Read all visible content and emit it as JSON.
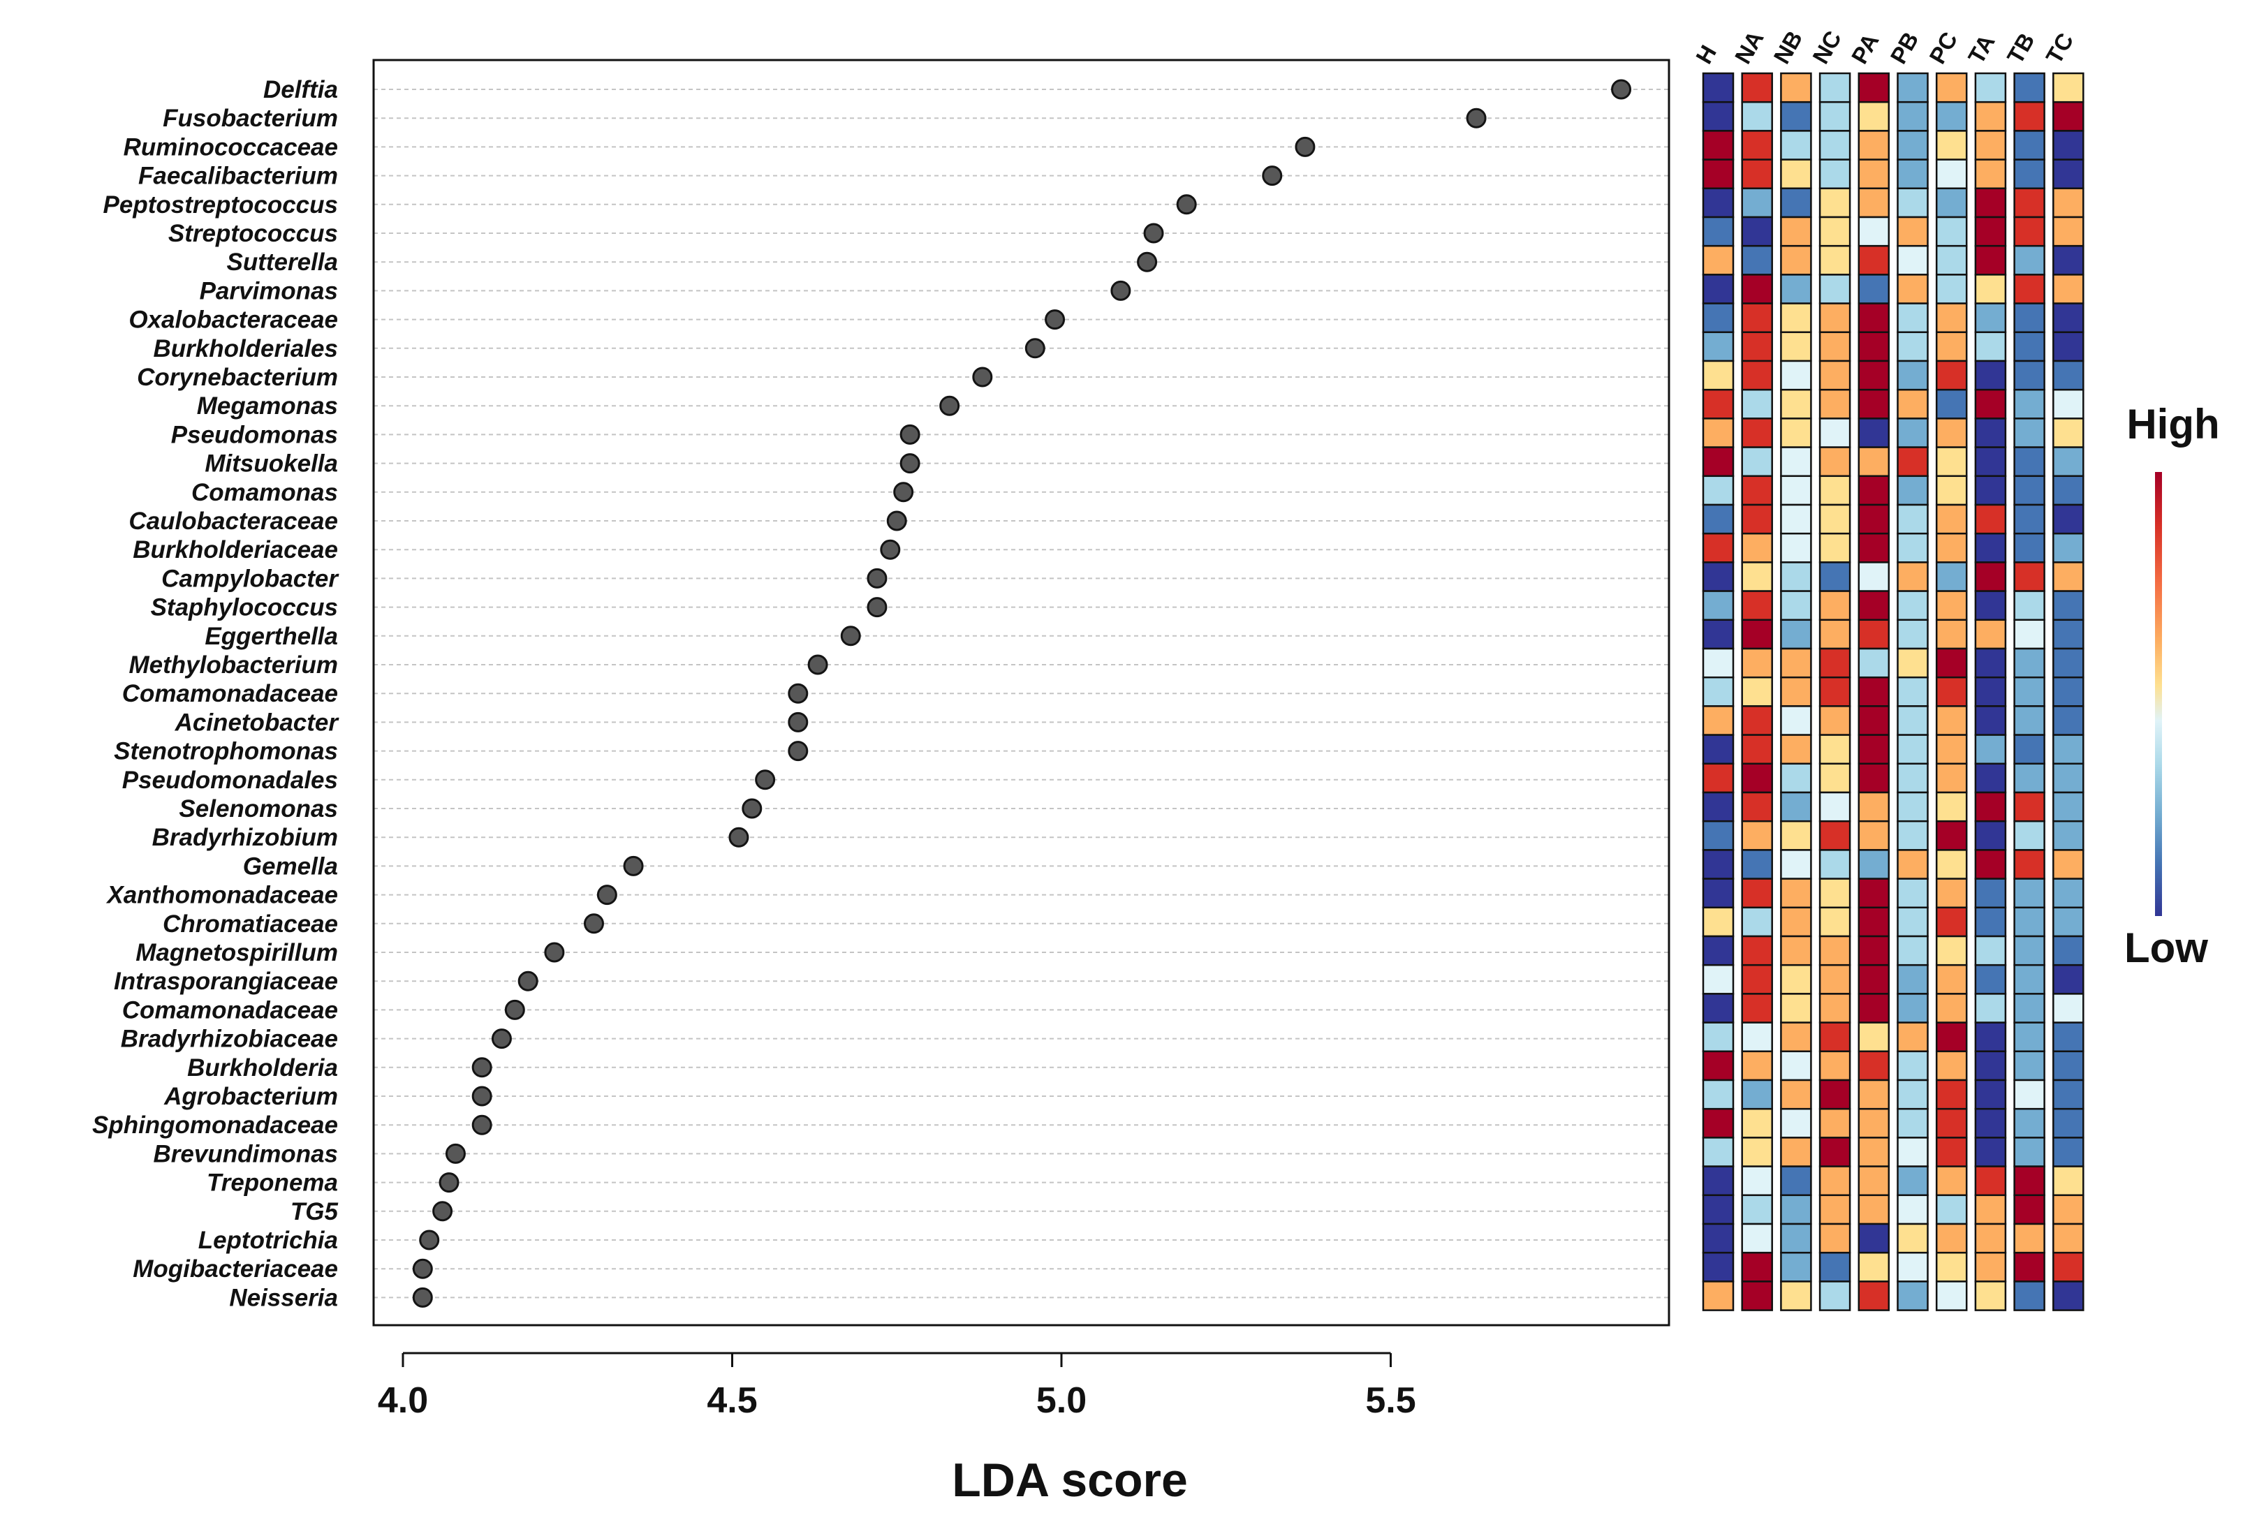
{
  "chart_data": {
    "type": "scatter",
    "title": "",
    "xlabel": "LDA score",
    "ylabel": "",
    "xlim": [
      3.96,
      5.92
    ],
    "xticks": [
      "4.0",
      "4.5",
      "5.0",
      "5.5"
    ],
    "grid": true,
    "categories": [
      "Delftia",
      "Fusobacterium",
      "Ruminococcaceae",
      "Faecalibacterium",
      "Peptostreptococcus",
      "Streptococcus",
      "Sutterella",
      "Parvimonas",
      "Oxalobacteraceae",
      "Burkholderiales",
      "Corynebacterium",
      "Megamonas",
      "Pseudomonas",
      "Mitsuokella",
      "Comamonas",
      "Caulobacteraceae",
      "Burkholderiaceae",
      "Campylobacter",
      "Staphylococcus",
      "Eggerthella",
      "Methylobacterium",
      "Comamonadaceae",
      "Acinetobacter",
      "Stenotrophomonas",
      "Pseudomonadales",
      "Selenomonas",
      "Bradyrhizobium",
      "Gemella",
      "Xanthomonadaceae",
      "Chromatiaceae",
      "Magnetospirillum",
      "Intrasporangiaceae",
      "Comamonadaceae",
      "Bradyrhizobiaceae",
      "Burkholderia",
      "Agrobacterium",
      "Sphingomonadaceae",
      "Brevundimonas",
      "Treponema",
      "TG5",
      "Leptotrichia",
      "Mogibacteriaceae",
      "Neisseria"
    ],
    "values": [
      5.85,
      5.63,
      5.37,
      5.32,
      5.19,
      5.14,
      5.13,
      5.09,
      4.99,
      4.96,
      4.88,
      4.83,
      4.77,
      4.77,
      4.76,
      4.75,
      4.74,
      4.72,
      4.72,
      4.68,
      4.63,
      4.6,
      4.6,
      4.6,
      4.55,
      4.53,
      4.51,
      4.35,
      4.31,
      4.29,
      4.23,
      4.19,
      4.17,
      4.15,
      4.12,
      4.12,
      4.12,
      4.08,
      4.07,
      4.06,
      4.04,
      4.03,
      4.03
    ],
    "heatmap": {
      "columns": [
        "H",
        "NA",
        "NB",
        "NC",
        "PA",
        "PB",
        "PC",
        "TA",
        "TB",
        "TC"
      ],
      "scale": "1 = Low (dark blue) to 9 = High (dark red)",
      "rows": [
        [
          1,
          8,
          7,
          4,
          9,
          3,
          7,
          4,
          2,
          6
        ],
        [
          1,
          4,
          2,
          4,
          6,
          3,
          3,
          7,
          8,
          9
        ],
        [
          9,
          8,
          4,
          4,
          7,
          3,
          6,
          7,
          2,
          1
        ],
        [
          9,
          8,
          6,
          4,
          7,
          3,
          5,
          7,
          2,
          1
        ],
        [
          1,
          3,
          2,
          6,
          7,
          4,
          3,
          9,
          8,
          7
        ],
        [
          2,
          1,
          7,
          6,
          5,
          7,
          4,
          9,
          8,
          7
        ],
        [
          7,
          2,
          7,
          6,
          8,
          5,
          4,
          9,
          3,
          1
        ],
        [
          1,
          9,
          3,
          4,
          2,
          7,
          4,
          6,
          8,
          7
        ],
        [
          2,
          8,
          6,
          7,
          9,
          4,
          7,
          3,
          2,
          1
        ],
        [
          3,
          8,
          6,
          7,
          9,
          4,
          7,
          4,
          2,
          1
        ],
        [
          6,
          8,
          5,
          7,
          9,
          3,
          8,
          1,
          2,
          2
        ],
        [
          8,
          4,
          6,
          7,
          9,
          7,
          2,
          9,
          3,
          5
        ],
        [
          7,
          8,
          6,
          5,
          1,
          3,
          7,
          1,
          3,
          6
        ],
        [
          9,
          4,
          5,
          7,
          7,
          8,
          6,
          1,
          2,
          3
        ],
        [
          4,
          8,
          5,
          6,
          9,
          3,
          6,
          1,
          2,
          2
        ],
        [
          2,
          8,
          5,
          6,
          9,
          4,
          7,
          8,
          2,
          1
        ],
        [
          8,
          7,
          5,
          6,
          9,
          4,
          7,
          1,
          2,
          3
        ],
        [
          1,
          6,
          4,
          2,
          5,
          7,
          3,
          9,
          8,
          7
        ],
        [
          3,
          8,
          4,
          7,
          9,
          4,
          7,
          1,
          4,
          2
        ],
        [
          1,
          9,
          3,
          7,
          8,
          4,
          7,
          7,
          5,
          2
        ],
        [
          5,
          7,
          7,
          8,
          4,
          6,
          9,
          1,
          3,
          2
        ],
        [
          4,
          6,
          7,
          8,
          9,
          4,
          8,
          1,
          3,
          2
        ],
        [
          7,
          8,
          5,
          7,
          9,
          4,
          7,
          1,
          3,
          2
        ],
        [
          1,
          8,
          7,
          6,
          9,
          4,
          7,
          3,
          2,
          3
        ],
        [
          8,
          9,
          4,
          6,
          9,
          4,
          7,
          1,
          3,
          3
        ],
        [
          1,
          8,
          3,
          5,
          7,
          4,
          6,
          9,
          8,
          3
        ],
        [
          2,
          7,
          6,
          8,
          7,
          4,
          9,
          1,
          4,
          3
        ],
        [
          1,
          2,
          5,
          4,
          3,
          7,
          6,
          9,
          8,
          7
        ],
        [
          1,
          8,
          7,
          6,
          9,
          4,
          7,
          2,
          3,
          3
        ],
        [
          6,
          4,
          7,
          6,
          9,
          4,
          8,
          2,
          3,
          3
        ],
        [
          1,
          8,
          7,
          7,
          9,
          4,
          6,
          4,
          3,
          2
        ],
        [
          5,
          8,
          6,
          7,
          9,
          3,
          7,
          2,
          3,
          1
        ],
        [
          1,
          8,
          6,
          7,
          9,
          3,
          7,
          4,
          3,
          5
        ],
        [
          4,
          5,
          7,
          8,
          6,
          7,
          9,
          1,
          3,
          2
        ],
        [
          9,
          7,
          5,
          7,
          8,
          4,
          7,
          1,
          3,
          2
        ],
        [
          4,
          3,
          7,
          9,
          7,
          4,
          8,
          1,
          5,
          2
        ],
        [
          9,
          6,
          5,
          7,
          7,
          4,
          8,
          1,
          3,
          2
        ],
        [
          4,
          6,
          7,
          9,
          7,
          5,
          8,
          1,
          3,
          2
        ],
        [
          1,
          5,
          2,
          7,
          7,
          3,
          7,
          8,
          9,
          6
        ],
        [
          1,
          4,
          3,
          7,
          7,
          5,
          4,
          7,
          9,
          7
        ],
        [
          1,
          5,
          3,
          7,
          1,
          6,
          7,
          7,
          7,
          7
        ],
        [
          1,
          9,
          3,
          2,
          6,
          5,
          6,
          7,
          9,
          8
        ],
        [
          7,
          9,
          6,
          4,
          8,
          3,
          5,
          6,
          2,
          1
        ]
      ]
    },
    "legend": {
      "high_label": "High",
      "low_label": "Low",
      "placement": "right"
    },
    "colors": {
      "palette": [
        "#313695",
        "#4575b4",
        "#74add1",
        "#abd9e9",
        "#e0f3f8",
        "#fee090",
        "#fdae61",
        "#f46d43",
        "#d73027",
        "#a50026"
      ],
      "cell_palette": [
        "#313695",
        "#4575b4",
        "#74add1",
        "#abd9e9",
        "#e0f3f8",
        "#fee090",
        "#fdae61",
        "#d73027",
        "#a50026"
      ]
    }
  }
}
